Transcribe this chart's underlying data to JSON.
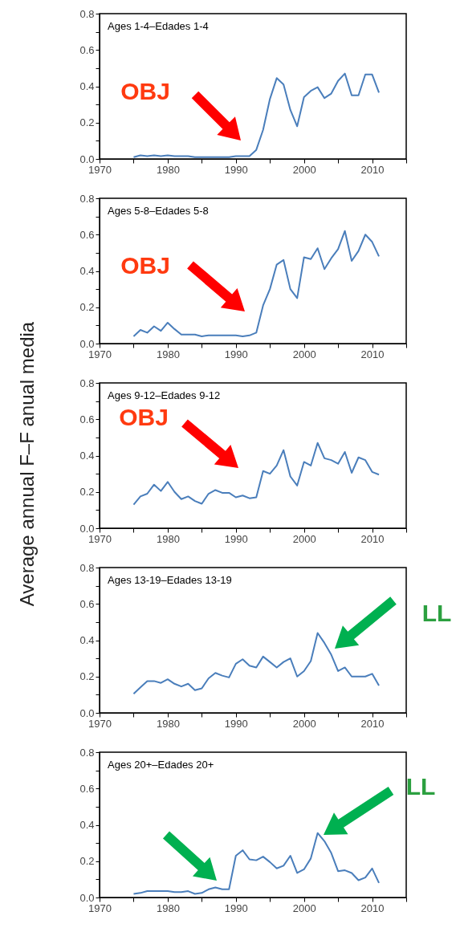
{
  "chart_data": [
    {
      "type": "line",
      "title": "Ages 1-4–Edades 1-4",
      "annotations": [
        "OBJ"
      ],
      "x": [
        1975,
        1976,
        1977,
        1978,
        1979,
        1980,
        1981,
        1982,
        1983,
        1984,
        1985,
        1986,
        1987,
        1988,
        1989,
        1990,
        1991,
        1992,
        1993,
        1994,
        1995,
        1996,
        1997,
        1998,
        1999,
        2000,
        2001,
        2002,
        2003,
        2004,
        2005,
        2006,
        2007,
        2008,
        2009,
        2010,
        2011
      ],
      "series": [
        {
          "color": "#4a7ebb",
          "values": [
            0.01,
            0.02,
            0.015,
            0.02,
            0.015,
            0.02,
            0.015,
            0.015,
            0.015,
            0.01,
            0.01,
            0.01,
            0.01,
            0.01,
            0.01,
            0.015,
            0.015,
            0.015,
            0.05,
            0.16,
            0.33,
            0.445,
            0.41,
            0.27,
            0.18,
            0.34,
            0.375,
            0.395,
            0.335,
            0.36,
            0.43,
            0.47,
            0.35,
            0.35,
            0.465,
            0.465,
            0.365
          ]
        }
      ],
      "xlim": [
        1970,
        2015
      ],
      "xticks": [
        1970,
        {
          "value": 1975,
          "label": null
        },
        1980,
        {
          "value": 1985,
          "label": null
        },
        1990,
        {
          "value": 1995,
          "label": null
        },
        2000,
        {
          "value": 2005,
          "label": null
        },
        2010,
        {
          "value": 2015,
          "label": null
        }
      ],
      "ylim": [
        0,
        0.8
      ],
      "yticks": [
        {
          "value": 0,
          "label": "0.0"
        },
        {
          "value": 0.1,
          "label": null
        },
        0.2,
        {
          "value": 0.3,
          "label": null
        },
        0.4,
        {
          "value": 0.5,
          "label": null
        },
        0.6,
        {
          "value": 0.7,
          "label": null
        },
        0.8
      ]
    },
    {
      "type": "line",
      "title": "Ages 5-8–Edades 5-8",
      "annotations": [
        "OBJ"
      ],
      "x": [
        1975,
        1976,
        1977,
        1978,
        1979,
        1980,
        1981,
        1982,
        1983,
        1984,
        1985,
        1986,
        1987,
        1988,
        1989,
        1990,
        1991,
        1992,
        1993,
        1994,
        1995,
        1996,
        1997,
        1998,
        1999,
        2000,
        2001,
        2002,
        2003,
        2004,
        2005,
        2006,
        2007,
        2008,
        2009,
        2010,
        2011
      ],
      "series": [
        {
          "color": "#4a7ebb",
          "values": [
            0.04,
            0.075,
            0.06,
            0.095,
            0.07,
            0.115,
            0.08,
            0.05,
            0.05,
            0.05,
            0.04,
            0.045,
            0.045,
            0.045,
            0.045,
            0.045,
            0.04,
            0.045,
            0.06,
            0.21,
            0.3,
            0.435,
            0.46,
            0.3,
            0.25,
            0.475,
            0.465,
            0.525,
            0.41,
            0.47,
            0.52,
            0.62,
            0.455,
            0.51,
            0.6,
            0.56,
            0.48
          ]
        }
      ],
      "xlim": [
        1970,
        2015
      ],
      "xticks": [
        1970,
        {
          "value": 1975,
          "label": null
        },
        1980,
        {
          "value": 1985,
          "label": null
        },
        1990,
        {
          "value": 1995,
          "label": null
        },
        2000,
        {
          "value": 2005,
          "label": null
        },
        2010,
        {
          "value": 2015,
          "label": null
        }
      ],
      "ylim": [
        0,
        0.8
      ],
      "yticks": [
        {
          "value": 0,
          "label": "0.0"
        },
        {
          "value": 0.1,
          "label": null
        },
        0.2,
        {
          "value": 0.3,
          "label": null
        },
        0.4,
        {
          "value": 0.5,
          "label": null
        },
        0.6,
        {
          "value": 0.7,
          "label": null
        },
        0.8
      ]
    },
    {
      "type": "line",
      "title": "Ages 9-12–Edades 9-12",
      "ylabel": "Average annual  F–F anual media",
      "annotations": [
        "OBJ"
      ],
      "x": [
        1975,
        1976,
        1977,
        1978,
        1979,
        1980,
        1981,
        1982,
        1983,
        1984,
        1985,
        1986,
        1987,
        1988,
        1989,
        1990,
        1991,
        1992,
        1993,
        1994,
        1995,
        1996,
        1997,
        1998,
        1999,
        2000,
        2001,
        2002,
        2003,
        2004,
        2005,
        2006,
        2007,
        2008,
        2009,
        2010,
        2011
      ],
      "series": [
        {
          "color": "#4a7ebb",
          "values": [
            0.13,
            0.175,
            0.19,
            0.24,
            0.205,
            0.255,
            0.2,
            0.16,
            0.175,
            0.15,
            0.135,
            0.19,
            0.21,
            0.195,
            0.195,
            0.17,
            0.18,
            0.165,
            0.17,
            0.315,
            0.3,
            0.345,
            0.43,
            0.285,
            0.235,
            0.365,
            0.345,
            0.47,
            0.385,
            0.375,
            0.355,
            0.42,
            0.305,
            0.39,
            0.375,
            0.31,
            0.295
          ]
        }
      ],
      "xlim": [
        1970,
        2015
      ],
      "xticks": [
        1970,
        {
          "value": 1975,
          "label": null
        },
        1980,
        {
          "value": 1985,
          "label": null
        },
        1990,
        {
          "value": 1995,
          "label": null
        },
        2000,
        {
          "value": 2005,
          "label": null
        },
        2010,
        {
          "value": 2015,
          "label": null
        }
      ],
      "ylim": [
        0,
        0.8
      ],
      "yticks": [
        {
          "value": 0,
          "label": "0.0"
        },
        {
          "value": 0.1,
          "label": null
        },
        0.2,
        {
          "value": 0.3,
          "label": null
        },
        0.4,
        {
          "value": 0.5,
          "label": null
        },
        0.6,
        {
          "value": 0.7,
          "label": null
        },
        0.8
      ]
    },
    {
      "type": "line",
      "title": "Ages 13-19–Edades 13-19",
      "annotations": [
        "LL"
      ],
      "x": [
        1975,
        1976,
        1977,
        1978,
        1979,
        1980,
        1981,
        1982,
        1983,
        1984,
        1985,
        1986,
        1987,
        1988,
        1989,
        1990,
        1991,
        1992,
        1993,
        1994,
        1995,
        1996,
        1997,
        1998,
        1999,
        2000,
        2001,
        2002,
        2003,
        2004,
        2005,
        2006,
        2007,
        2008,
        2009,
        2010,
        2011
      ],
      "series": [
        {
          "color": "#4a7ebb",
          "values": [
            0.105,
            0.14,
            0.175,
            0.175,
            0.165,
            0.185,
            0.16,
            0.145,
            0.16,
            0.125,
            0.135,
            0.19,
            0.22,
            0.205,
            0.195,
            0.27,
            0.295,
            0.26,
            0.25,
            0.31,
            0.28,
            0.25,
            0.28,
            0.3,
            0.2,
            0.23,
            0.285,
            0.44,
            0.385,
            0.32,
            0.23,
            0.25,
            0.2,
            0.2,
            0.2,
            0.215,
            0.15
          ]
        }
      ],
      "xlim": [
        1970,
        2015
      ],
      "xticks": [
        1970,
        {
          "value": 1975,
          "label": null
        },
        1980,
        {
          "value": 1985,
          "label": null
        },
        1990,
        {
          "value": 1995,
          "label": null
        },
        2000,
        {
          "value": 2005,
          "label": null
        },
        2010,
        {
          "value": 2015,
          "label": null
        }
      ],
      "ylim": [
        0,
        0.8
      ],
      "yticks": [
        {
          "value": 0,
          "label": "0.0"
        },
        {
          "value": 0.1,
          "label": null
        },
        0.2,
        {
          "value": 0.3,
          "label": null
        },
        0.4,
        {
          "value": 0.5,
          "label": null
        },
        0.6,
        {
          "value": 0.7,
          "label": null
        },
        0.8
      ]
    },
    {
      "type": "line",
      "title": "Ages 20+–Edades 20+",
      "annotations": [
        "LL"
      ],
      "x": [
        1975,
        1976,
        1977,
        1978,
        1979,
        1980,
        1981,
        1982,
        1983,
        1984,
        1985,
        1986,
        1987,
        1988,
        1989,
        1990,
        1991,
        1992,
        1993,
        1994,
        1995,
        1996,
        1997,
        1998,
        1999,
        2000,
        2001,
        2002,
        2003,
        2004,
        2005,
        2006,
        2007,
        2008,
        2009,
        2010,
        2011
      ],
      "series": [
        {
          "color": "#4a7ebb",
          "values": [
            0.02,
            0.025,
            0.035,
            0.035,
            0.035,
            0.035,
            0.03,
            0.03,
            0.035,
            0.02,
            0.025,
            0.045,
            0.055,
            0.045,
            0.045,
            0.23,
            0.26,
            0.21,
            0.205,
            0.225,
            0.195,
            0.16,
            0.175,
            0.23,
            0.135,
            0.155,
            0.215,
            0.355,
            0.31,
            0.245,
            0.145,
            0.15,
            0.135,
            0.095,
            0.11,
            0.16,
            0.08
          ]
        }
      ],
      "xlim": [
        1970,
        2015
      ],
      "xticks": [
        1970,
        {
          "value": 1975,
          "label": null
        },
        1980,
        {
          "value": 1985,
          "label": null
        },
        1990,
        {
          "value": 1995,
          "label": null
        },
        2000,
        {
          "value": 2005,
          "label": null
        },
        2010,
        {
          "value": 2015,
          "label": null
        }
      ],
      "ylim": [
        0,
        0.8
      ],
      "yticks": [
        {
          "value": 0,
          "label": "0.0"
        },
        {
          "value": 0.1,
          "label": null
        },
        0.2,
        {
          "value": 0.3,
          "label": null
        },
        0.4,
        {
          "value": 0.5,
          "label": null
        },
        0.6,
        {
          "value": 0.7,
          "label": null
        },
        0.8
      ]
    }
  ]
}
